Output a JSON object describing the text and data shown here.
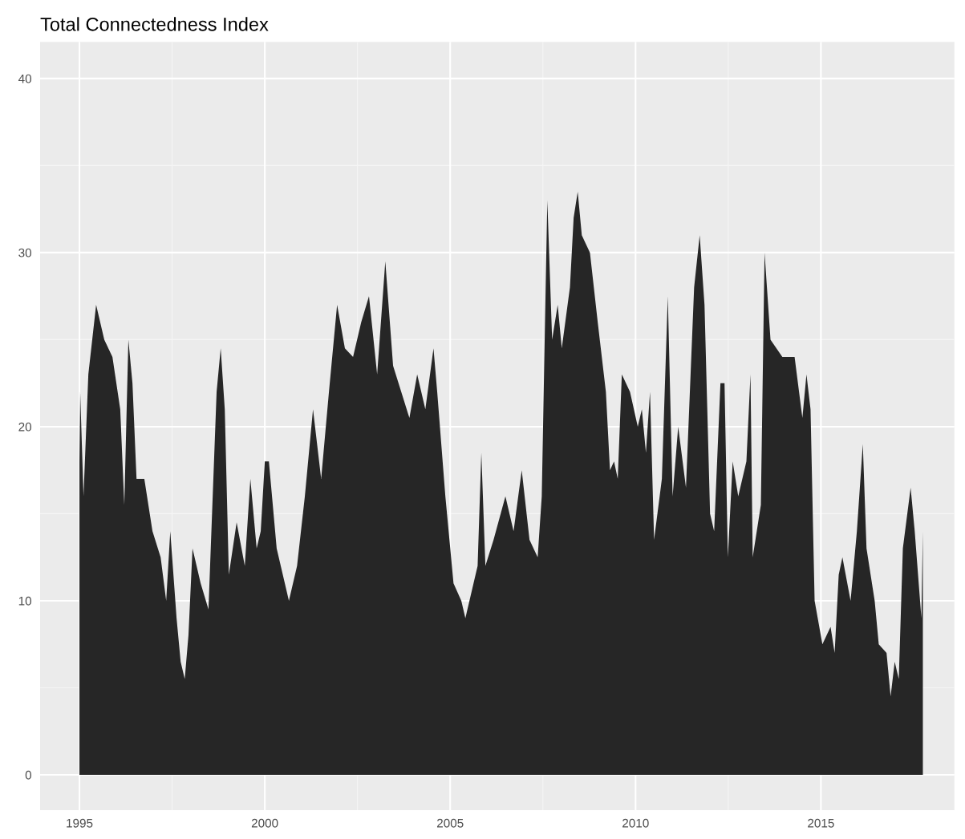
{
  "chart_data": {
    "type": "area",
    "title": "Total Connectedness Index",
    "x": [
      1995.0,
      1995.02,
      1995.11,
      1995.24,
      1995.45,
      1995.67,
      1995.89,
      1996.1,
      1996.21,
      1996.32,
      1996.43,
      1996.54,
      1996.75,
      1996.97,
      1997.19,
      1997.34,
      1997.45,
      1997.62,
      1997.73,
      1997.84,
      1997.94,
      1998.05,
      1998.27,
      1998.48,
      1998.7,
      1998.81,
      1998.92,
      1999.03,
      1999.24,
      1999.46,
      1999.61,
      1999.78,
      1999.89,
      2000.0,
      2000.11,
      2000.32,
      2000.54,
      2000.65,
      2000.87,
      2001.08,
      2001.3,
      2001.52,
      2001.73,
      2001.95,
      2002.16,
      2002.38,
      2002.6,
      2002.81,
      2003.03,
      2003.25,
      2003.46,
      2003.68,
      2003.9,
      2004.11,
      2004.33,
      2004.55,
      2004.65,
      2004.87,
      2004.98,
      2005.09,
      2005.3,
      2005.41,
      2005.63,
      2005.74,
      2005.84,
      2005.95,
      2006.17,
      2006.49,
      2006.71,
      2006.93,
      2007.14,
      2007.36,
      2007.47,
      2007.62,
      2007.75,
      2007.9,
      2008.01,
      2008.23,
      2008.33,
      2008.44,
      2008.55,
      2008.77,
      2008.98,
      2009.2,
      2009.31,
      2009.42,
      2009.52,
      2009.63,
      2009.85,
      2010.06,
      2010.17,
      2010.28,
      2010.39,
      2010.5,
      2010.71,
      2010.87,
      2011.0,
      2011.15,
      2011.36,
      2011.58,
      2011.73,
      2011.86,
      2012.01,
      2012.12,
      2012.29,
      2012.4,
      2012.49,
      2012.62,
      2012.77,
      2012.99,
      2013.1,
      2013.16,
      2013.38,
      2013.48,
      2013.64,
      2013.96,
      2014.29,
      2014.5,
      2014.61,
      2014.72,
      2014.83,
      2015.04,
      2015.26,
      2015.37,
      2015.48,
      2015.58,
      2015.8,
      2015.97,
      2016.13,
      2016.23,
      2016.45,
      2016.56,
      2016.77,
      2016.88,
      2016.99,
      2017.1,
      2017.21,
      2017.42,
      2017.53,
      2017.71,
      2017.75
    ],
    "series": [
      {
        "color": "#262626",
        "values": [
          18,
          22,
          16,
          23,
          27,
          25,
          24,
          21,
          15.5,
          25,
          22.5,
          17,
          17,
          14,
          12.5,
          10,
          14,
          9,
          6.5,
          5.5,
          8,
          13,
          11,
          9.5,
          22,
          24.5,
          21,
          11.5,
          14.5,
          12,
          17,
          13,
          14,
          18,
          18,
          13,
          11,
          10,
          12,
          16,
          21,
          17,
          22,
          27,
          24.5,
          24,
          26,
          27.5,
          23,
          29.5,
          23.5,
          22,
          20.5,
          23,
          21,
          24.5,
          22,
          16,
          13.5,
          11,
          10,
          9,
          11,
          12,
          18.5,
          12,
          13.5,
          16,
          14,
          17.5,
          13.5,
          12.5,
          16,
          33,
          25,
          27,
          24.5,
          28,
          32,
          33.5,
          31,
          30,
          26,
          22,
          17.5,
          18,
          17,
          23,
          22,
          20,
          21,
          18.5,
          22,
          13.5,
          17,
          27.5,
          16,
          20,
          16.5,
          28,
          31,
          27,
          15,
          14,
          22.5,
          22.5,
          12.5,
          18,
          16,
          18,
          23,
          12.5,
          15.5,
          30,
          25,
          24,
          24,
          20.5,
          23,
          21,
          10,
          7.5,
          8.5,
          7,
          11.5,
          12.5,
          10,
          14,
          19,
          13,
          10,
          7.5,
          7,
          4.5,
          6.5,
          5.5,
          13,
          16.5,
          14,
          9,
          14
        ]
      }
    ],
    "xlim": [
      1993.94,
      2018.6
    ],
    "ylim": [
      -2.03,
      42.1
    ],
    "xticks": [
      1995,
      2000,
      2005,
      2010,
      2015
    ],
    "yticks": [
      0,
      10,
      20,
      30,
      40
    ],
    "grid": true
  }
}
